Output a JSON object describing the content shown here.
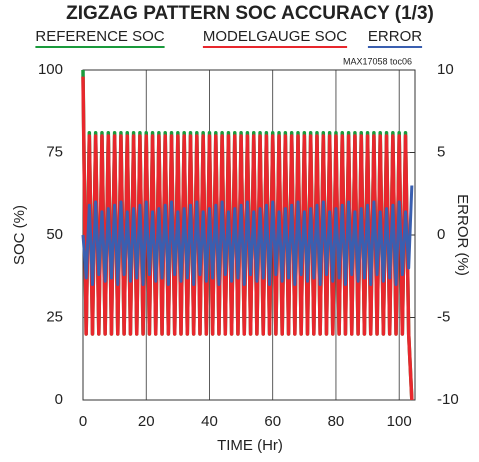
{
  "chart_data": {
    "type": "line",
    "title": "ZIGZAG PATTERN SOC ACCURACY (1/3)",
    "annotation": "MAX17058 toc06",
    "xlabel": "TIME (Hr)",
    "ylabel": "SOC (%)",
    "y2label": "ERROR (%)",
    "xlim": [
      0,
      105
    ],
    "xticks": [
      0,
      20,
      40,
      60,
      80,
      100
    ],
    "ylim": [
      0,
      100
    ],
    "yticks": [
      0,
      25,
      50,
      75,
      100
    ],
    "y2lim": [
      -10,
      10
    ],
    "y2ticks": [
      -10,
      -5,
      0,
      5,
      10
    ],
    "grid": true,
    "x": [
      0,
      1,
      2,
      3,
      4,
      5,
      6,
      7,
      8,
      9,
      10,
      11,
      12,
      13,
      14,
      15,
      16,
      17,
      18,
      19,
      20,
      21,
      22,
      23,
      24,
      25,
      26,
      27,
      28,
      29,
      30,
      31,
      32,
      33,
      34,
      35,
      36,
      37,
      38,
      39,
      40,
      41,
      42,
      43,
      44,
      45,
      46,
      47,
      48,
      49,
      50,
      51,
      52,
      53,
      54,
      55,
      56,
      57,
      58,
      59,
      60,
      61,
      62,
      63,
      64,
      65,
      66,
      67,
      68,
      69,
      70,
      71,
      72,
      73,
      74,
      75,
      76,
      77,
      78,
      79,
      80,
      81,
      82,
      83,
      84,
      85,
      86,
      87,
      88,
      89,
      90,
      91,
      92,
      93,
      94,
      95,
      96,
      97,
      98,
      99,
      100,
      101,
      102,
      103,
      104
    ],
    "series": [
      {
        "name": "REFERENCE SOC",
        "color": "#1a9a3c",
        "values": [
          100,
          20,
          81,
          20,
          81,
          20,
          81,
          20,
          81,
          20,
          81,
          20,
          81,
          20,
          81,
          20,
          81,
          20,
          81,
          20,
          81,
          20,
          81,
          20,
          81,
          20,
          81,
          20,
          81,
          20,
          81,
          20,
          81,
          20,
          81,
          20,
          81,
          20,
          81,
          20,
          81,
          20,
          81,
          20,
          81,
          20,
          81,
          20,
          81,
          20,
          81,
          20,
          81,
          20,
          81,
          20,
          81,
          20,
          81,
          20,
          81,
          20,
          81,
          20,
          81,
          20,
          81,
          20,
          81,
          20,
          81,
          20,
          81,
          20,
          81,
          20,
          81,
          20,
          81,
          20,
          81,
          20,
          81,
          20,
          81,
          20,
          81,
          20,
          81,
          20,
          81,
          20,
          81,
          20,
          81,
          20,
          81,
          20,
          81,
          20,
          81,
          20,
          81,
          20,
          0
        ]
      },
      {
        "name": "MODELGAUGE SOC",
        "color": "#e8272d",
        "values": [
          98,
          20,
          80,
          20,
          80,
          20,
          80,
          20,
          80,
          20,
          80,
          20,
          80,
          20,
          80,
          20,
          80,
          20,
          80,
          20,
          80,
          20,
          80,
          20,
          80,
          20,
          80,
          20,
          80,
          20,
          80,
          20,
          80,
          20,
          80,
          20,
          80,
          20,
          80,
          20,
          80,
          20,
          80,
          20,
          80,
          20,
          80,
          20,
          80,
          20,
          80,
          20,
          80,
          20,
          80,
          20,
          80,
          20,
          80,
          20,
          80,
          20,
          80,
          20,
          80,
          20,
          80,
          20,
          80,
          20,
          80,
          20,
          80,
          20,
          80,
          20,
          80,
          20,
          80,
          20,
          80,
          20,
          80,
          20,
          80,
          20,
          80,
          20,
          80,
          20,
          80,
          20,
          80,
          20,
          80,
          20,
          80,
          20,
          80,
          20,
          80,
          20,
          80,
          20,
          0
        ]
      },
      {
        "name": "ERROR",
        "color": "#3a5fb0",
        "axis": "y2",
        "values": [
          0,
          -2.6,
          1.8,
          -3,
          2,
          -2.4,
          1.4,
          -2.8,
          1.6,
          -2.6,
          1.8,
          -3,
          2,
          -2.4,
          1.4,
          -2.8,
          1.6,
          -2.6,
          1.8,
          -3,
          2,
          -2.4,
          1.4,
          -2.8,
          1.6,
          -2.6,
          1.8,
          -3,
          2,
          -2.4,
          1.4,
          -2.8,
          1.6,
          -2.6,
          1.8,
          -3,
          2,
          -2.4,
          1.4,
          -2.8,
          1.6,
          -2.6,
          1.8,
          -3,
          2,
          -2.4,
          1.4,
          -2.8,
          1.6,
          -2.6,
          1.8,
          -3,
          2,
          -2.4,
          1.4,
          -2.8,
          1.6,
          -2.6,
          1.8,
          -3,
          2,
          -2.4,
          1.4,
          -2.8,
          1.6,
          -2.6,
          1.8,
          -3,
          2,
          -2.4,
          1.4,
          -2.8,
          1.6,
          -2.6,
          1.8,
          -3,
          2,
          -2.4,
          1.4,
          -2.8,
          1.6,
          -2.6,
          1.8,
          -3,
          2,
          -2.4,
          1.4,
          -2.8,
          1.6,
          -2.6,
          1.8,
          -3,
          2,
          -2.4,
          1.4,
          -2.8,
          1.6,
          -2.6,
          1.8,
          -3,
          2,
          -2.4,
          1.4,
          -2,
          3
        ]
      }
    ]
  }
}
